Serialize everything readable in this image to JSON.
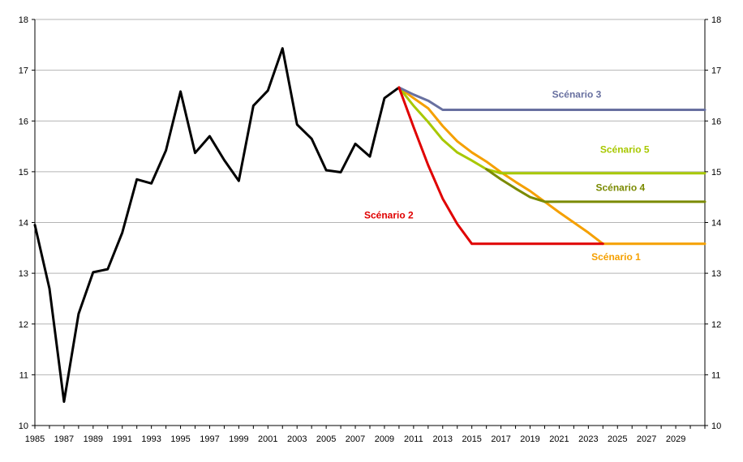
{
  "chart_data": {
    "type": "line",
    "title": "",
    "xlabel": "",
    "ylabel": "",
    "xlim": [
      1985,
      2031
    ],
    "ylim": [
      10,
      18
    ],
    "y_ticks": [
      10,
      11,
      12,
      13,
      14,
      15,
      16,
      17,
      18
    ],
    "x_ticks": [
      1985,
      1987,
      1989,
      1991,
      1993,
      1995,
      1997,
      1999,
      2001,
      2003,
      2005,
      2007,
      2009,
      2011,
      2013,
      2015,
      2017,
      2019,
      2021,
      2023,
      2025,
      2027,
      2029
    ],
    "grid": true,
    "legend": "none",
    "series": [
      {
        "name": "",
        "color": "#000000",
        "x": [
          1985,
          1986,
          1987,
          1988,
          1989,
          1990,
          1991,
          1992,
          1993,
          1994,
          1995,
          1996,
          1997,
          1998,
          1999,
          2000,
          2001,
          2002,
          2003,
          2004,
          2005,
          2006,
          2007,
          2008,
          2009,
          2010
        ],
        "y": [
          13.95,
          12.7,
          10.47,
          12.2,
          13.02,
          13.08,
          13.8,
          14.85,
          14.77,
          15.42,
          16.58,
          15.37,
          15.7,
          15.23,
          14.82,
          16.3,
          16.6,
          17.43,
          15.93,
          15.65,
          15.03,
          14.99,
          15.55,
          15.3,
          16.45,
          16.66
        ]
      },
      {
        "name": "Scénario 1",
        "color": "#f5a000",
        "x": [
          2010,
          2011,
          2012,
          2013,
          2014,
          2015,
          2016,
          2017,
          2018,
          2019,
          2020,
          2021,
          2022,
          2023,
          2024,
          2025,
          2026,
          2027,
          2028,
          2029,
          2030,
          2031
        ],
        "y": [
          16.66,
          16.45,
          16.25,
          15.9,
          15.6,
          15.38,
          15.2,
          14.99,
          14.8,
          14.62,
          14.41,
          14.2,
          14.0,
          13.8,
          13.58,
          13.58,
          13.58,
          13.58,
          13.58,
          13.58,
          13.58,
          13.58
        ]
      },
      {
        "name": "Scénario 2",
        "color": "#e00000",
        "x": [
          2010,
          2011,
          2012,
          2013,
          2014,
          2015,
          2016,
          2017,
          2018,
          2019,
          2020,
          2021,
          2022,
          2023,
          2024
        ],
        "y": [
          16.66,
          15.88,
          15.13,
          14.47,
          13.97,
          13.58,
          13.58,
          13.58,
          13.58,
          13.58,
          13.58,
          13.58,
          13.58,
          13.58,
          13.58
        ]
      },
      {
        "name": "Scénario 3",
        "color": "#6870a0",
        "x": [
          2010,
          2011,
          2012,
          2013,
          2014,
          2015,
          2016,
          2017,
          2018,
          2019,
          2020,
          2021,
          2022,
          2023,
          2024,
          2025,
          2026,
          2027,
          2028,
          2029,
          2030,
          2031
        ],
        "y": [
          16.66,
          16.52,
          16.4,
          16.22,
          16.22,
          16.22,
          16.22,
          16.22,
          16.22,
          16.22,
          16.22,
          16.22,
          16.22,
          16.22,
          16.22,
          16.22,
          16.22,
          16.22,
          16.22,
          16.22,
          16.22,
          16.22
        ]
      },
      {
        "name": "Scénario 4",
        "color": "#7a8a00",
        "x": [
          2016,
          2017,
          2018,
          2019,
          2020,
          2021,
          2022,
          2023,
          2024,
          2025,
          2026,
          2027,
          2028,
          2029,
          2030,
          2031
        ],
        "y": [
          15.05,
          14.85,
          14.67,
          14.5,
          14.41,
          14.41,
          14.41,
          14.41,
          14.41,
          14.41,
          14.41,
          14.41,
          14.41,
          14.41,
          14.41,
          14.41
        ]
      },
      {
        "name": "Scénario 5",
        "color": "#a8c800",
        "x": [
          2010,
          2011,
          2012,
          2013,
          2014,
          2015,
          2016,
          2017,
          2018,
          2019,
          2020,
          2021,
          2022,
          2023,
          2024,
          2025,
          2026,
          2027,
          2028,
          2029,
          2030,
          2031
        ],
        "y": [
          16.66,
          16.3,
          15.98,
          15.63,
          15.38,
          15.22,
          15.05,
          14.97,
          14.97,
          14.97,
          14.97,
          14.97,
          14.97,
          14.97,
          14.97,
          14.97,
          14.97,
          14.97,
          14.97,
          14.97,
          14.97,
          14.97
        ]
      }
    ],
    "annotations": [
      {
        "text": "Scénario 3",
        "series": 3,
        "x": 2022.2,
        "y": 16.46
      },
      {
        "text": "Scénario 5",
        "series": 5,
        "x": 2025.5,
        "y": 15.37
      },
      {
        "text": "Scénario 4",
        "series": 4,
        "x": 2025.2,
        "y": 14.62
      },
      {
        "text": "Scénario 2",
        "series": 2,
        "x": 2009.3,
        "y": 14.08
      },
      {
        "text": "Scénario 1",
        "series": 1,
        "x": 2024.9,
        "y": 13.26
      }
    ]
  }
}
